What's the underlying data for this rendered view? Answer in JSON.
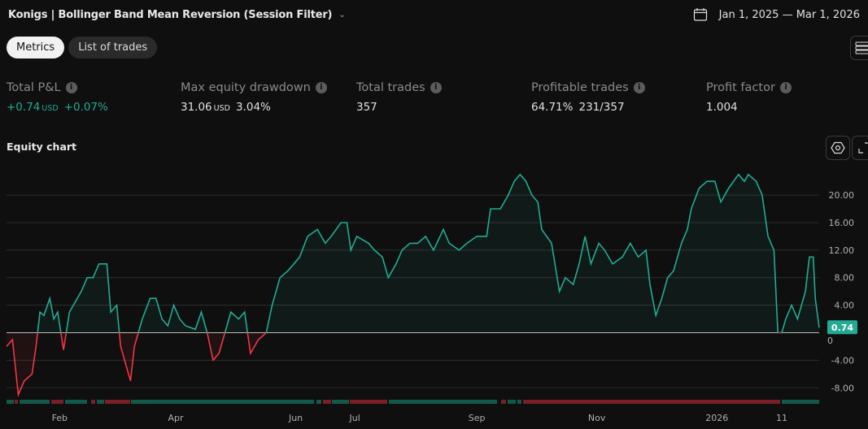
{
  "header": {
    "title": "Konigs | Bollinger Band Mean Reversion (Session Filter)",
    "date_range": "Jan 1, 2025 — Mar 1, 2026",
    "calendar_icon": "calendar-icon"
  },
  "tabs": [
    {
      "label": "Metrics",
      "active": true
    },
    {
      "label": "List of trades",
      "active": false
    }
  ],
  "metrics": [
    {
      "label": "Total P&L",
      "value": "+0.74",
      "unit": "USD",
      "secondary": "+0.07%",
      "positive": true
    },
    {
      "label": "Max equity drawdown",
      "value": "31.06",
      "unit": "USD",
      "secondary": "3.04%"
    },
    {
      "label": "Total trades",
      "value": "357"
    },
    {
      "label": "Profitable trades",
      "value": "64.71%",
      "secondary": "231/357"
    },
    {
      "label": "Profit factor",
      "value": "1.004"
    }
  ],
  "equity_chart": {
    "label": "Equity chart",
    "current_value_badge": "0.74",
    "colors": {
      "positive": "#22ab94",
      "negative": "#f23645",
      "badge": "#22ab94"
    },
    "chart_data": {
      "type": "area",
      "y_ticks": [
        20,
        16,
        12,
        8,
        4,
        0,
        -4,
        -8
      ],
      "y_tick_labels": [
        "20.00",
        "16.00",
        "12.00",
        "8.00",
        "4.00",
        "0",
        "-4.00",
        "-8.00"
      ],
      "ylim": [
        -10,
        23.5
      ],
      "x_ticks": [
        {
          "label": "Feb",
          "date": "2025-02-01"
        },
        {
          "label": "Apr",
          "date": "2025-04-01"
        },
        {
          "label": "Jun",
          "date": "2025-06-01"
        },
        {
          "label": "Jul",
          "date": "2025-07-01"
        },
        {
          "label": "Sep",
          "date": "2025-09-01"
        },
        {
          "label": "Nov",
          "date": "2025-11-01"
        },
        {
          "label": "2026",
          "date": "2026-01-01"
        },
        {
          "label": "11",
          "date": "2026-02-03"
        }
      ],
      "grid": true,
      "points": [
        [
          "2025-01-05",
          -2
        ],
        [
          "2025-01-08",
          -1
        ],
        [
          "2025-01-11",
          -9
        ],
        [
          "2025-01-14",
          -7
        ],
        [
          "2025-01-18",
          -6
        ],
        [
          "2025-01-20",
          -2
        ],
        [
          "2025-01-22",
          3
        ],
        [
          "2025-01-24",
          2.5
        ],
        [
          "2025-01-27",
          5
        ],
        [
          "2025-01-29",
          2
        ],
        [
          "2025-01-31",
          3
        ],
        [
          "2025-02-03",
          -2.5
        ],
        [
          "2025-02-06",
          3
        ],
        [
          "2025-02-08",
          4
        ],
        [
          "2025-02-12",
          6
        ],
        [
          "2025-02-15",
          8
        ],
        [
          "2025-02-18",
          8
        ],
        [
          "2025-02-21",
          10
        ],
        [
          "2025-02-25",
          10
        ],
        [
          "2025-02-27",
          3
        ],
        [
          "2025-03-02",
          4
        ],
        [
          "2025-03-04",
          -2
        ],
        [
          "2025-03-09",
          -7
        ],
        [
          "2025-03-11",
          -2
        ],
        [
          "2025-03-15",
          2
        ],
        [
          "2025-03-19",
          5
        ],
        [
          "2025-03-22",
          5
        ],
        [
          "2025-03-25",
          2
        ],
        [
          "2025-03-28",
          1
        ],
        [
          "2025-03-31",
          4
        ],
        [
          "2025-04-03",
          2
        ],
        [
          "2025-04-06",
          1
        ],
        [
          "2025-04-11",
          0.5
        ],
        [
          "2025-04-14",
          3
        ],
        [
          "2025-04-17",
          0
        ],
        [
          "2025-04-20",
          -4
        ],
        [
          "2025-04-23",
          -3
        ],
        [
          "2025-04-26",
          0
        ],
        [
          "2025-04-29",
          3
        ],
        [
          "2025-05-03",
          2
        ],
        [
          "2025-05-06",
          3
        ],
        [
          "2025-05-09",
          -3
        ],
        [
          "2025-05-13",
          -1
        ],
        [
          "2025-05-17",
          0
        ],
        [
          "2025-05-20",
          4
        ],
        [
          "2025-05-24",
          8
        ],
        [
          "2025-05-28",
          9
        ],
        [
          "2025-05-31",
          10
        ],
        [
          "2025-06-03",
          11
        ],
        [
          "2025-06-07",
          14
        ],
        [
          "2025-06-12",
          15
        ],
        [
          "2025-06-16",
          13
        ],
        [
          "2025-06-19",
          14
        ],
        [
          "2025-06-24",
          16
        ],
        [
          "2025-06-27",
          16
        ],
        [
          "2025-06-29",
          12
        ],
        [
          "2025-07-02",
          14
        ],
        [
          "2025-07-08",
          13
        ],
        [
          "2025-07-11",
          12
        ],
        [
          "2025-07-15",
          11
        ],
        [
          "2025-07-18",
          8
        ],
        [
          "2025-07-22",
          10
        ],
        [
          "2025-07-25",
          12
        ],
        [
          "2025-07-29",
          13
        ],
        [
          "2025-08-02",
          13
        ],
        [
          "2025-08-06",
          14
        ],
        [
          "2025-08-10",
          12
        ],
        [
          "2025-08-15",
          15
        ],
        [
          "2025-08-18",
          13
        ],
        [
          "2025-08-23",
          12
        ],
        [
          "2025-08-27",
          13
        ],
        [
          "2025-09-01",
          14
        ],
        [
          "2025-09-06",
          14
        ],
        [
          "2025-09-08",
          18
        ],
        [
          "2025-09-13",
          18
        ],
        [
          "2025-09-17",
          20
        ],
        [
          "2025-09-20",
          22
        ],
        [
          "2025-09-23",
          23
        ],
        [
          "2025-09-26",
          22
        ],
        [
          "2025-09-29",
          20
        ],
        [
          "2025-10-02",
          19
        ],
        [
          "2025-10-04",
          15
        ],
        [
          "2025-10-09",
          13
        ],
        [
          "2025-10-13",
          6
        ],
        [
          "2025-10-16",
          8
        ],
        [
          "2025-10-20",
          7
        ],
        [
          "2025-10-23",
          10
        ],
        [
          "2025-10-26",
          14
        ],
        [
          "2025-10-29",
          10
        ],
        [
          "2025-11-02",
          13
        ],
        [
          "2025-11-05",
          12
        ],
        [
          "2025-11-09",
          10
        ],
        [
          "2025-11-14",
          11
        ],
        [
          "2025-11-18",
          13
        ],
        [
          "2025-11-22",
          11
        ],
        [
          "2025-11-26",
          12
        ],
        [
          "2025-11-28",
          7
        ],
        [
          "2025-12-01",
          2.5
        ],
        [
          "2025-12-04",
          5
        ],
        [
          "2025-12-07",
          8
        ],
        [
          "2025-12-10",
          9
        ],
        [
          "2025-12-14",
          13
        ],
        [
          "2025-12-17",
          15
        ],
        [
          "2025-12-19",
          18
        ],
        [
          "2025-12-23",
          21
        ],
        [
          "2025-12-27",
          22
        ],
        [
          "2025-12-31",
          22
        ],
        [
          "2026-01-03",
          19
        ],
        [
          "2026-01-07",
          21
        ],
        [
          "2026-01-12",
          23
        ],
        [
          "2026-01-15",
          22
        ],
        [
          "2026-01-17",
          23
        ],
        [
          "2026-01-21",
          22
        ],
        [
          "2026-01-24",
          20
        ],
        [
          "2026-01-27",
          14
        ],
        [
          "2026-01-30",
          12
        ],
        [
          "2026-02-01",
          0
        ],
        [
          "2026-02-03",
          0
        ],
        [
          "2026-02-05",
          2
        ],
        [
          "2026-02-08",
          4
        ],
        [
          "2026-02-11",
          2
        ],
        [
          "2026-02-15",
          6
        ],
        [
          "2026-02-17",
          11
        ],
        [
          "2026-02-19",
          11
        ],
        [
          "2026-02-20",
          5
        ],
        [
          "2026-02-22",
          0.74
        ]
      ]
    }
  }
}
